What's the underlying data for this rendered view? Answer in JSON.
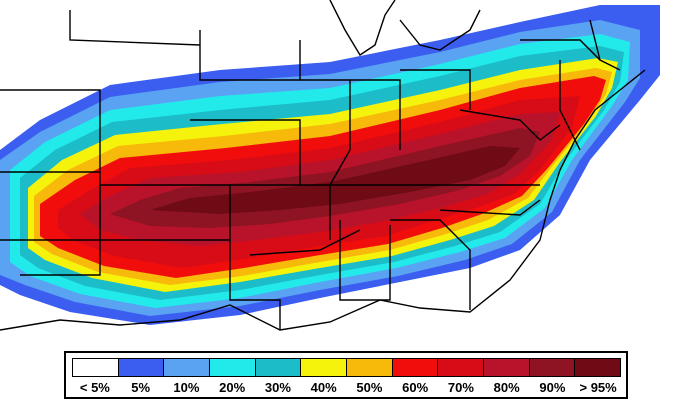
{
  "legend": {
    "items": [
      {
        "label": "< 5%",
        "color": "#ffffff"
      },
      {
        "label": "5%",
        "color": "#3b5df0"
      },
      {
        "label": "10%",
        "color": "#5aa2f2"
      },
      {
        "label": "20%",
        "color": "#22eaea"
      },
      {
        "label": "30%",
        "color": "#1cbcc9"
      },
      {
        "label": "40%",
        "color": "#f5f20c"
      },
      {
        "label": "50%",
        "color": "#f7b90a"
      },
      {
        "label": "60%",
        "color": "#f20d0d"
      },
      {
        "label": "70%",
        "color": "#d80c16"
      },
      {
        "label": "80%",
        "color": "#b8132a"
      },
      {
        "label": "90%",
        "color": "#8e1424"
      },
      {
        "label": "> 95%",
        "color": "#6e0b15"
      }
    ]
  },
  "map": {
    "background": "#ffffff",
    "border_color": "#000000"
  }
}
